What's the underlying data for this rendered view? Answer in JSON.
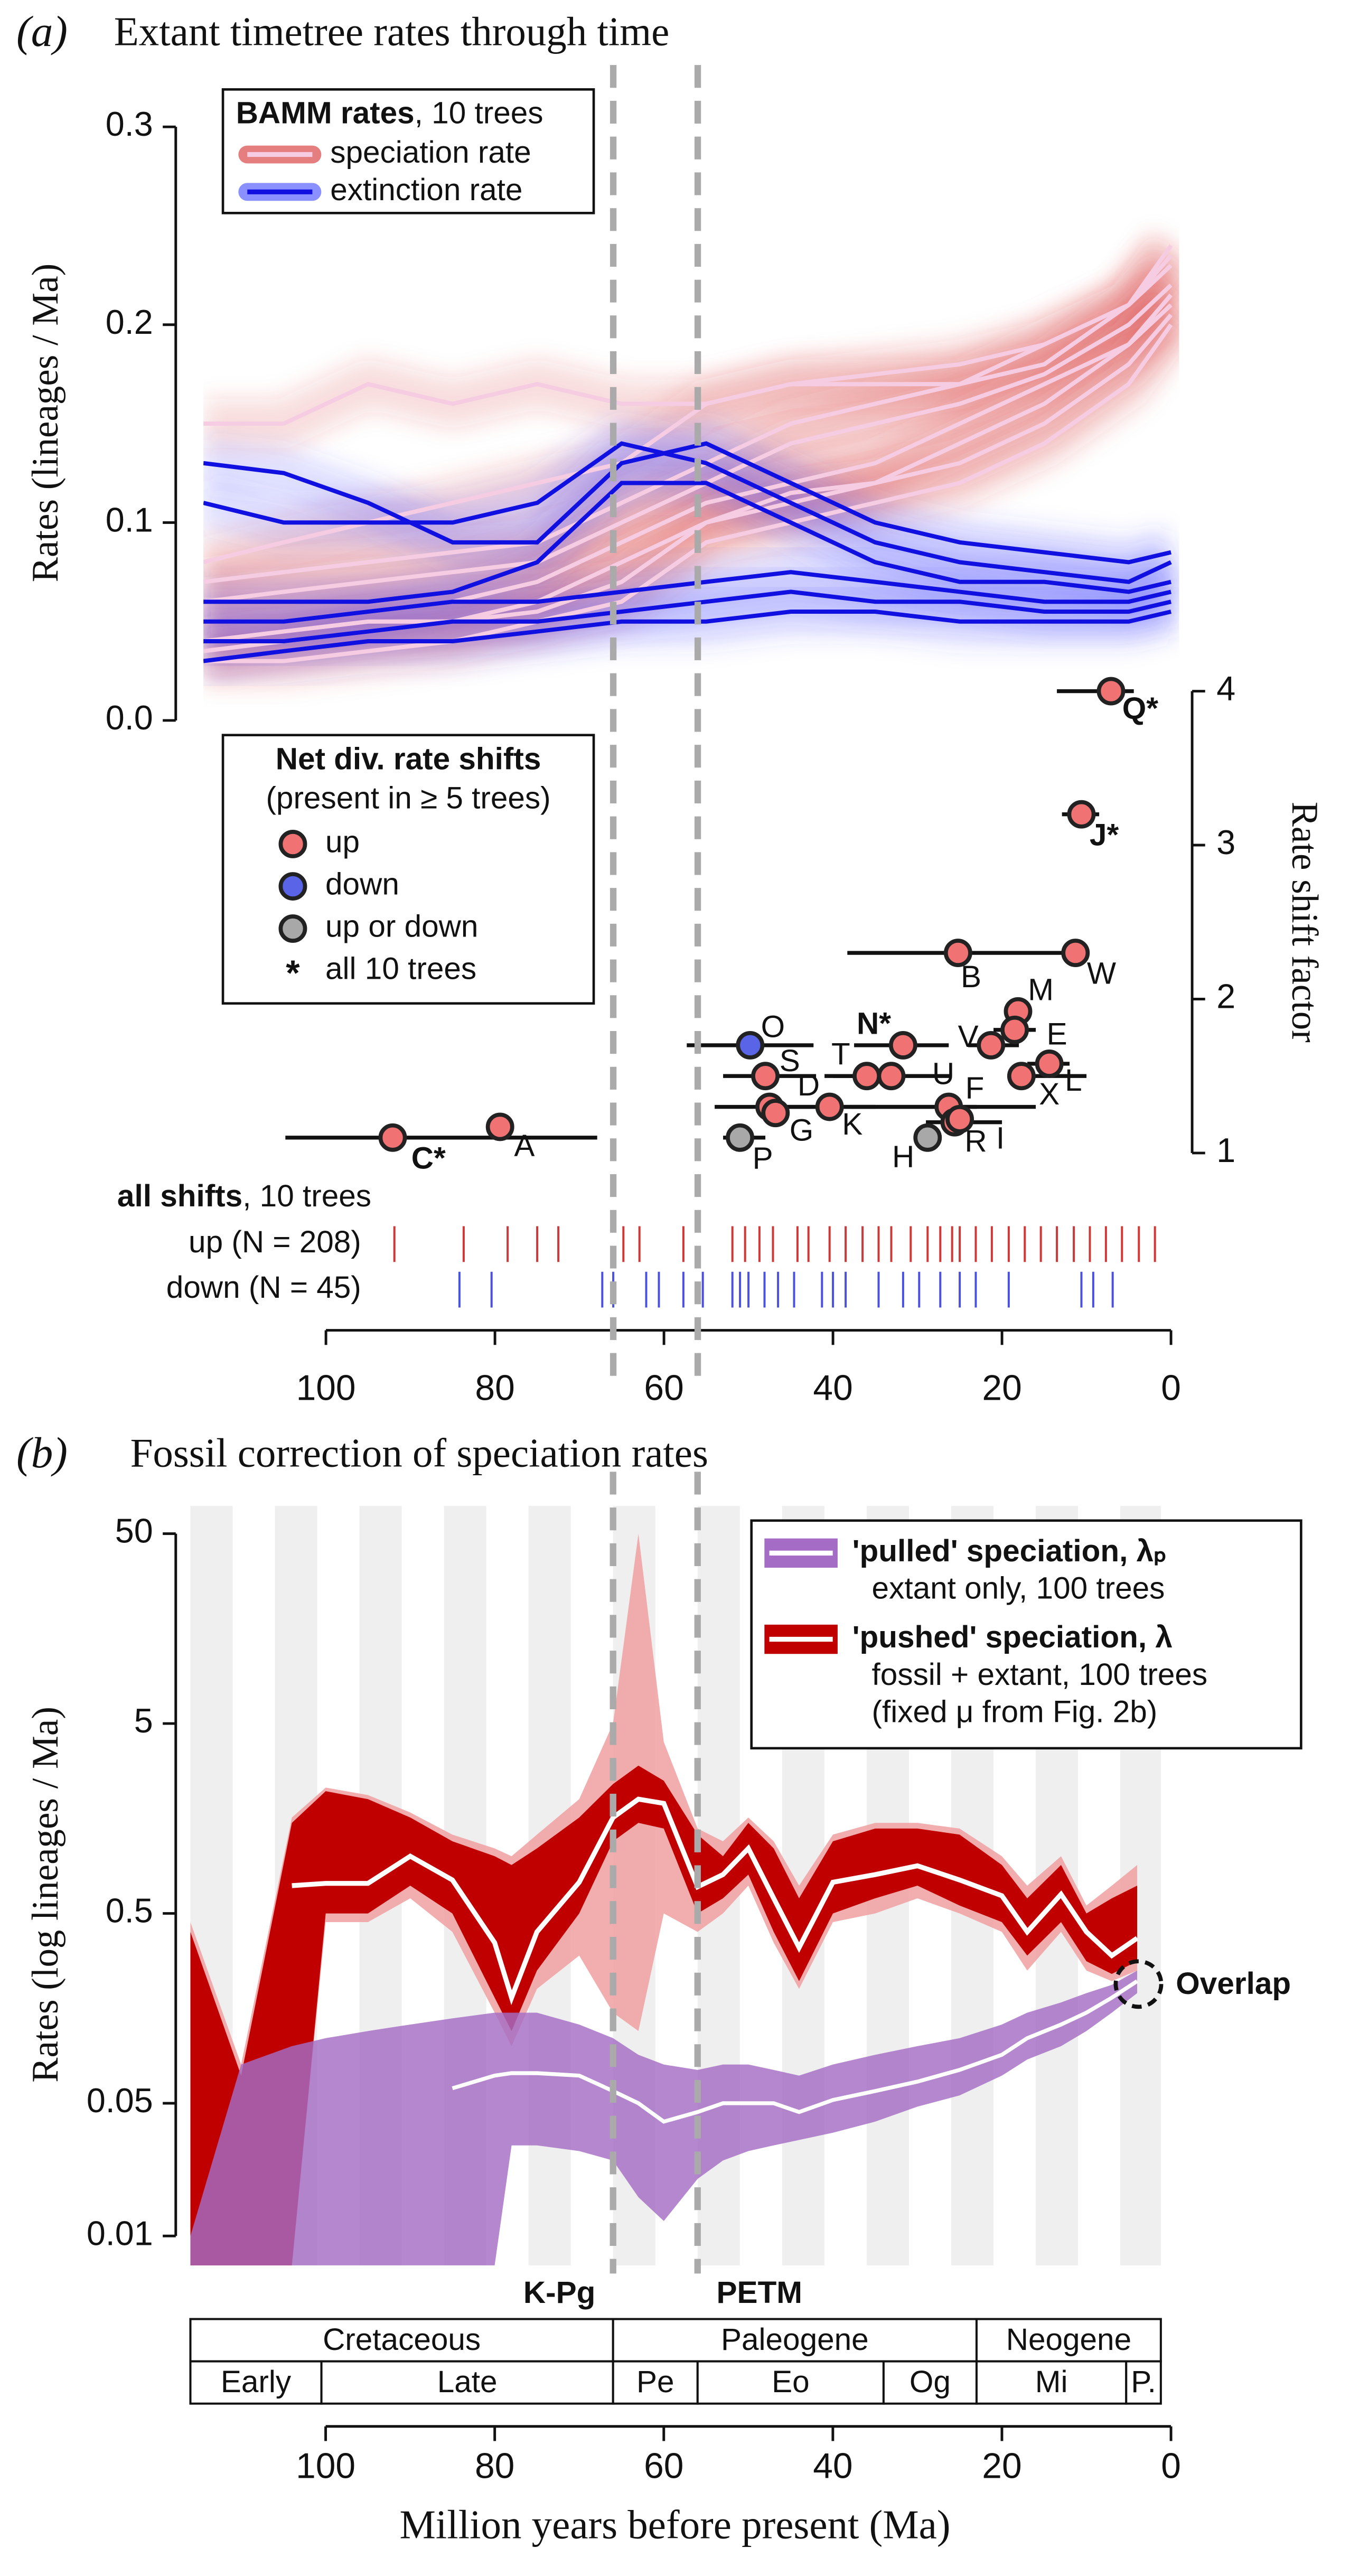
{
  "chart_data": [
    {
      "type": "line",
      "panel_label": "(a)",
      "title": "Extant timetree rates through time",
      "y_label": "Rates (lineages / Ma)",
      "x": [
        114.5,
        105,
        95,
        85,
        75,
        65,
        55,
        45,
        35,
        25,
        15,
        5,
        0
      ],
      "xlim": [
        114.5,
        0
      ],
      "xticks": [
        100,
        80,
        60,
        40,
        20,
        0
      ],
      "ylim": [
        0,
        0.3
      ],
      "yticks": [
        {
          "value": 0,
          "label": "0.0"
        },
        0.1,
        0.2,
        0.3
      ],
      "legend_title": "BAMM rates",
      "legend_note": ", 10 trees",
      "series": [
        {
          "name": "speciation rate",
          "color": "#d42a2a",
          "line_color": "#f6cce2",
          "trees": [
            [
              0.15,
              0.15,
              0.17,
              0.16,
              0.17,
              0.16,
              0.16,
              0.17,
              0.175,
              0.18,
              0.19,
              0.21,
              0.23
            ],
            [
              0.08,
              0.09,
              0.1,
              0.11,
              0.12,
              0.13,
              0.16,
              0.17,
              0.17,
              0.17,
              0.19,
              0.21,
              0.235
            ],
            [
              0.07,
              0.075,
              0.08,
              0.085,
              0.09,
              0.11,
              0.13,
              0.15,
              0.16,
              0.17,
              0.18,
              0.21,
              0.24
            ],
            [
              0.06,
              0.065,
              0.07,
              0.075,
              0.08,
              0.1,
              0.12,
              0.14,
              0.15,
              0.16,
              0.175,
              0.2,
              0.22
            ],
            [
              0.05,
              0.05,
              0.055,
              0.06,
              0.07,
              0.09,
              0.11,
              0.12,
              0.13,
              0.15,
              0.17,
              0.19,
              0.21
            ],
            [
              0.04,
              0.045,
              0.05,
              0.05,
              0.06,
              0.08,
              0.1,
              0.115,
              0.12,
              0.14,
              0.16,
              0.19,
              0.215
            ],
            [
              0.035,
              0.04,
              0.045,
              0.05,
              0.055,
              0.07,
              0.1,
              0.11,
              0.12,
              0.13,
              0.15,
              0.18,
              0.205
            ],
            [
              0.03,
              0.03,
              0.035,
              0.04,
              0.05,
              0.06,
              0.09,
              0.1,
              0.11,
              0.12,
              0.14,
              0.17,
              0.2
            ]
          ]
        },
        {
          "name": "extinction rate",
          "color": "#3c46ff",
          "line_color": "#1010e0",
          "trees": [
            [
              0.13,
              0.125,
              0.11,
              0.09,
              0.09,
              0.13,
              0.14,
              0.12,
              0.1,
              0.09,
              0.085,
              0.08,
              0.085
            ],
            [
              0.11,
              0.1,
              0.1,
              0.1,
              0.11,
              0.14,
              0.13,
              0.11,
              0.09,
              0.08,
              0.075,
              0.07,
              0.08
            ],
            [
              0.06,
              0.06,
              0.06,
              0.065,
              0.08,
              0.12,
              0.12,
              0.1,
              0.08,
              0.07,
              0.07,
              0.065,
              0.07
            ],
            [
              0.05,
              0.05,
              0.055,
              0.06,
              0.06,
              0.065,
              0.07,
              0.075,
              0.07,
              0.065,
              0.06,
              0.06,
              0.065
            ],
            [
              0.04,
              0.04,
              0.045,
              0.05,
              0.05,
              0.055,
              0.06,
              0.065,
              0.06,
              0.06,
              0.055,
              0.055,
              0.06
            ],
            [
              0.03,
              0.035,
              0.04,
              0.04,
              0.045,
              0.05,
              0.05,
              0.055,
              0.055,
              0.05,
              0.05,
              0.05,
              0.055
            ]
          ]
        }
      ],
      "y2_label": "Rate shift factor",
      "y2lim": [
        1,
        4
      ],
      "y2ticks": [
        1,
        2,
        3,
        4
      ],
      "shift_legend": {
        "title": "Net div. rate shifts",
        "subtitle": "(present in ≥ 5 trees)",
        "items": [
          {
            "label": "up",
            "color": "#f07272"
          },
          {
            "label": "down",
            "color": "#5a64e6"
          },
          {
            "label": "up or down",
            "color": "#a8a8a8"
          },
          {
            "symbol": "*",
            "label": "all 10 trees"
          }
        ]
      },
      "shifts": [
        {
          "label": "Q*",
          "x": 7.1,
          "value": 4.0,
          "ci": [
            13.5,
            4.4
          ],
          "color": "#f07272"
        },
        {
          "label": "J*",
          "x": 10.6,
          "value": 3.2,
          "ci": [
            12.9,
            8.5
          ],
          "color": "#f07272"
        },
        {
          "label": "B",
          "x": 25.2,
          "value": 2.3,
          "ci": [
            38.3,
            10.6
          ],
          "color": "#f07272"
        },
        {
          "label": "W",
          "x": 11.3,
          "value": 2.3,
          "color": "#f07272"
        },
        {
          "label": "M",
          "x": 18.1,
          "value": 1.92,
          "color": "#f07272"
        },
        {
          "label": "E",
          "x": 18.5,
          "value": 1.8,
          "ci": [
            21,
            16
          ],
          "color": "#f07272"
        },
        {
          "label": "V",
          "x": 21.3,
          "value": 1.7,
          "ci": [
            24,
            18
          ],
          "color": "#f07272"
        },
        {
          "label": "N*",
          "x": 31.7,
          "value": 1.7,
          "ci": [
            37.5,
            26.3
          ],
          "color": "#f07272"
        },
        {
          "label": "O",
          "x": 49.8,
          "value": 1.7,
          "ci": [
            57.3,
            42.3
          ],
          "color": "#5a64e6"
        },
        {
          "label": "S",
          "x": 48,
          "value": 1.5,
          "ci": [
            53,
            42
          ],
          "color": "#f07272"
        },
        {
          "label": "T",
          "x": 36,
          "value": 1.5,
          "ci": [
            40,
            32
          ],
          "color": "#f07272"
        },
        {
          "label": "U",
          "x": 33.1,
          "value": 1.5,
          "ci": [
            41,
            26
          ],
          "color": "#f07272"
        },
        {
          "label": "L",
          "x": 17.7,
          "value": 1.5,
          "ci": [
            19,
            10
          ],
          "color": "#f07272"
        },
        {
          "label": "X",
          "x": 14.4,
          "value": 1.58,
          "ci": [
            17,
            12
          ],
          "color": "#f07272"
        },
        {
          "label": "F",
          "x": 26.3,
          "value": 1.3,
          "ci": [
            38,
            23
          ],
          "color": "#f07272"
        },
        {
          "label": "D",
          "x": 47.5,
          "value": 1.3,
          "ci": [
            54,
            16
          ],
          "color": "#f07272"
        },
        {
          "label": "K",
          "x": 40.4,
          "value": 1.3,
          "ci": [
            46,
            35
          ],
          "color": "#f07272"
        },
        {
          "label": "G",
          "x": 46.8,
          "value": 1.26,
          "color": "#f07272"
        },
        {
          "label": "R",
          "x": 25.6,
          "value": 1.2,
          "ci": [
            29,
            20
          ],
          "color": "#f07272"
        },
        {
          "label": "I",
          "x": 25,
          "value": 1.22,
          "color": "#f07272"
        },
        {
          "label": "H",
          "x": 28.8,
          "value": 1.1,
          "color": "#a8a8a8"
        },
        {
          "label": "P",
          "x": 51,
          "value": 1.1,
          "ci": [
            53,
            48
          ],
          "color": "#a8a8a8"
        },
        {
          "label": "A",
          "x": 79.4,
          "value": 1.17,
          "color": "#f07272"
        },
        {
          "label": "C*",
          "x": 92.1,
          "value": 1.1,
          "ci": [
            104.8,
            67.9
          ],
          "color": "#f07272"
        }
      ],
      "rug_title": "all shifts",
      "rug_note": ", 10 trees",
      "rug": [
        {
          "label": "up (N = 208)",
          "color": "#d03838",
          "x": [
            91.9,
            83.7,
            78.5,
            75.0,
            72.5,
            64.8,
            62.9,
            57.7,
            51.9,
            50.4,
            48.7,
            47.1,
            44.2,
            42.9,
            40.4,
            38.5,
            36.5,
            34.6,
            33.1,
            30.8,
            28.8,
            27.3,
            25.9,
            25.0,
            23.1,
            21.2,
            19.2,
            17.3,
            15.4,
            13.5,
            11.5,
            9.6,
            7.7,
            5.8,
            3.8,
            1.9
          ]
        },
        {
          "label": "down (N = 45)",
          "color": "#4a50e0",
          "x": [
            84.2,
            80.4,
            67.3,
            66.0,
            62.1,
            60.6,
            57.7,
            55.4,
            51.9,
            51.0,
            50.0,
            48.1,
            46.5,
            44.6,
            41.3,
            40.0,
            38.5,
            34.6,
            31.7,
            29.8,
            27.3,
            25.0,
            23.1,
            19.2,
            10.6,
            9.2,
            6.9
          ]
        }
      ]
    },
    {
      "type": "line",
      "log": true,
      "panel_label": "(b)",
      "title": "Fossil correction of speciation rates",
      "y_label": "Rates (log lineages / Ma)",
      "x_label": "Million years before present (Ma)",
      "x": [
        116,
        110,
        104,
        100,
        95,
        90,
        85,
        80,
        78,
        75,
        70,
        66,
        63,
        60,
        56,
        53,
        50,
        47,
        44,
        40,
        35,
        30,
        25,
        20,
        17,
        13,
        10,
        7,
        4
      ],
      "xlim": [
        116,
        0
      ],
      "xticks": [
        100,
        80,
        60,
        40,
        20,
        0
      ],
      "ylim": [
        0.007,
        70
      ],
      "yticks": [
        0.01,
        0.05,
        0.5,
        5,
        50
      ],
      "series": [
        {
          "name": "'pulled' speciation, λₚ",
          "note": [
            "extant only, 100 trees"
          ],
          "color": "#a46cc4",
          "values": [
            null,
            null,
            null,
            null,
            null,
            null,
            0.06,
            0.07,
            0.072,
            0.072,
            0.07,
            0.058,
            0.05,
            0.04,
            0.045,
            0.05,
            0.05,
            0.05,
            0.045,
            0.052,
            0.058,
            0.065,
            0.075,
            0.09,
            0.11,
            0.13,
            0.15,
            0.18,
            0.22
          ],
          "lower": [
            0.007,
            0.007,
            0.007,
            0.007,
            0.007,
            0.007,
            0.007,
            0.007,
            0.03,
            0.03,
            0.028,
            0.025,
            0.016,
            0.012,
            0.02,
            0.025,
            0.028,
            0.03,
            0.032,
            0.035,
            0.04,
            0.048,
            0.055,
            0.07,
            0.085,
            0.1,
            0.12,
            0.15,
            0.19
          ],
          "upper": [
            0.01,
            0.08,
            0.1,
            0.11,
            0.12,
            0.13,
            0.14,
            0.15,
            0.15,
            0.15,
            0.13,
            0.11,
            0.09,
            0.08,
            0.075,
            0.08,
            0.08,
            0.075,
            0.07,
            0.08,
            0.09,
            0.1,
            0.11,
            0.13,
            0.15,
            0.17,
            0.19,
            0.21,
            0.25
          ]
        },
        {
          "name": "'pushed' speciation, λ",
          "note": [
            "fossil + extant, 100 trees",
            "(fixed μ from Fig. 2b)"
          ],
          "color": "#c00000",
          "outer_color": "#f0a0a0",
          "values": [
            null,
            null,
            0.7,
            0.72,
            0.72,
            1.0,
            0.75,
            0.35,
            0.18,
            0.4,
            0.73,
            1.6,
            2.0,
            1.9,
            0.69,
            0.8,
            1.1,
            0.6,
            0.33,
            0.73,
            0.8,
            0.89,
            0.75,
            0.62,
            0.4,
            0.63,
            0.4,
            0.3,
            0.37
          ],
          "lower": [
            0.007,
            0.007,
            0.007,
            0.5,
            0.5,
            0.7,
            0.5,
            0.18,
            0.12,
            0.25,
            0.5,
            1.2,
            1.5,
            1.4,
            0.5,
            0.6,
            0.8,
            0.4,
            0.22,
            0.5,
            0.6,
            0.7,
            0.55,
            0.45,
            0.3,
            0.45,
            0.28,
            0.24,
            0.28
          ],
          "upper": [
            0.4,
            0.07,
            1.5,
            2.2,
            2.0,
            1.6,
            1.2,
            1.0,
            0.9,
            1.1,
            1.6,
            2.4,
            3.0,
            2.5,
            1.3,
            1.0,
            1.5,
            1.1,
            0.6,
            1.2,
            1.4,
            1.4,
            1.3,
            0.9,
            0.6,
            0.9,
            0.5,
            0.6,
            0.7
          ],
          "outer_lower": [
            0.007,
            0.007,
            0.007,
            0.45,
            0.45,
            0.6,
            0.4,
            0.15,
            0.1,
            0.2,
            0.3,
            0.15,
            0.12,
            0.5,
            0.4,
            0.5,
            0.7,
            0.35,
            0.2,
            0.45,
            0.5,
            0.6,
            0.5,
            0.4,
            0.25,
            0.4,
            0.25,
            0.22,
            0.25
          ],
          "outer_upper": [
            0.45,
            0.08,
            1.6,
            2.3,
            2.1,
            1.7,
            1.3,
            1.1,
            1.0,
            1.3,
            2.0,
            5.0,
            50,
            4.0,
            1.4,
            1.2,
            1.6,
            1.2,
            0.7,
            1.3,
            1.5,
            1.5,
            1.4,
            1.0,
            0.7,
            1.0,
            0.55,
            0.7,
            0.9
          ]
        }
      ],
      "events": [
        {
          "label": "K-Pg",
          "value": 66
        },
        {
          "label": "PETM",
          "value": 56
        }
      ],
      "annotation": "Overlap",
      "timescale": {
        "periods": [
          {
            "name": "Cretaceous",
            "start": 116,
            "end": 66
          },
          {
            "name": "Paleogene",
            "start": 66,
            "end": 23
          },
          {
            "name": "Neogene",
            "start": 23,
            "end": 1.2
          }
        ],
        "epochs": [
          {
            "name": "Early",
            "start": 116,
            "end": 100.5
          },
          {
            "name": "Late",
            "start": 100.5,
            "end": 66
          },
          {
            "name": "Pe",
            "start": 66,
            "end": 56
          },
          {
            "name": "Eo",
            "start": 56,
            "end": 34
          },
          {
            "name": "Og",
            "start": 34,
            "end": 23
          },
          {
            "name": "Mi",
            "start": 23,
            "end": 5.3
          },
          {
            "name": "P.",
            "start": 5.3,
            "end": 1.2
          }
        ]
      }
    }
  ]
}
